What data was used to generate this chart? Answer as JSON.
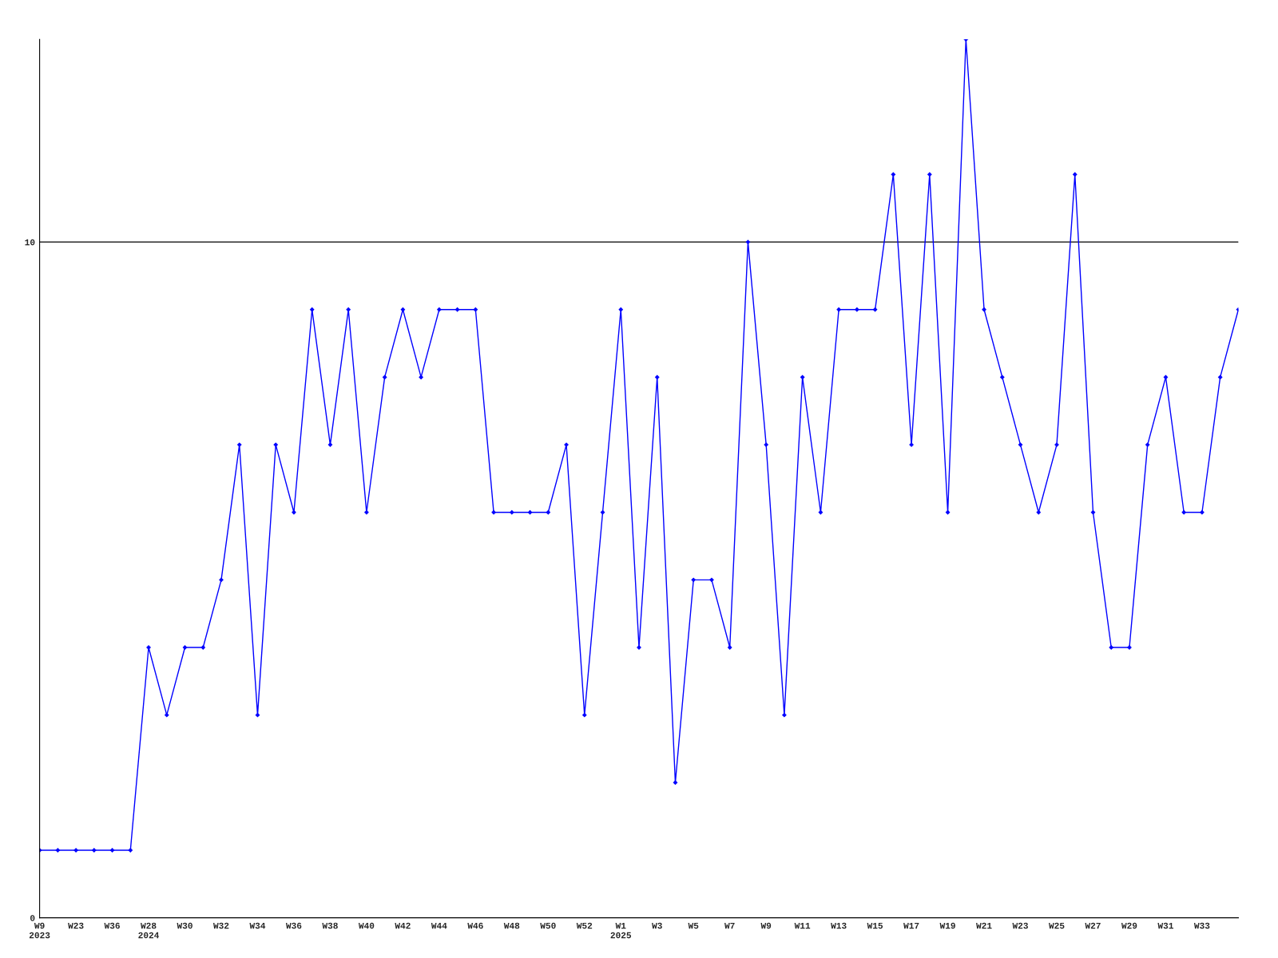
{
  "chart_data": {
    "type": "line",
    "categories": [
      "W9\n2023",
      null,
      "W23",
      null,
      "W36",
      null,
      "W28\n2024",
      null,
      "W30",
      null,
      "W32",
      null,
      "W34",
      null,
      "W36",
      null,
      "W38",
      null,
      "W40",
      null,
      "W42",
      null,
      "W44",
      null,
      "W46",
      null,
      "W48",
      null,
      "W50",
      null,
      "W52",
      null,
      "W1\n2025",
      null,
      "W3",
      null,
      "W5",
      null,
      "W7",
      null,
      "W9",
      null,
      "W11",
      null,
      "W13",
      null,
      "W15",
      null,
      "W17",
      null,
      "W19",
      null,
      "W21",
      null,
      "W23",
      null,
      "W25",
      null,
      "W27",
      null,
      "W29",
      null,
      "W31",
      null,
      "W33",
      null,
      null
    ],
    "series": [
      {
        "color": "#0000ff",
        "values": [
          1,
          1,
          1,
          1,
          1,
          1,
          4,
          3,
          4,
          4,
          5,
          7,
          3,
          7,
          6,
          9,
          7,
          9,
          6,
          8,
          9,
          8,
          9,
          9,
          9,
          6,
          6,
          6,
          6,
          7,
          3,
          6,
          9,
          4,
          8,
          2,
          5,
          5,
          4,
          10,
          7,
          3,
          8,
          6,
          9,
          9,
          9,
          11,
          7,
          11,
          6,
          13,
          9,
          8,
          7,
          6,
          7,
          11,
          6,
          4,
          4,
          7,
          8,
          6,
          6,
          8,
          9
        ]
      }
    ],
    "ylim": [
      0,
      13
    ],
    "yticks": [
      0,
      10
    ],
    "grid": "y",
    "marker": "diamond",
    "line_style": "solid"
  }
}
